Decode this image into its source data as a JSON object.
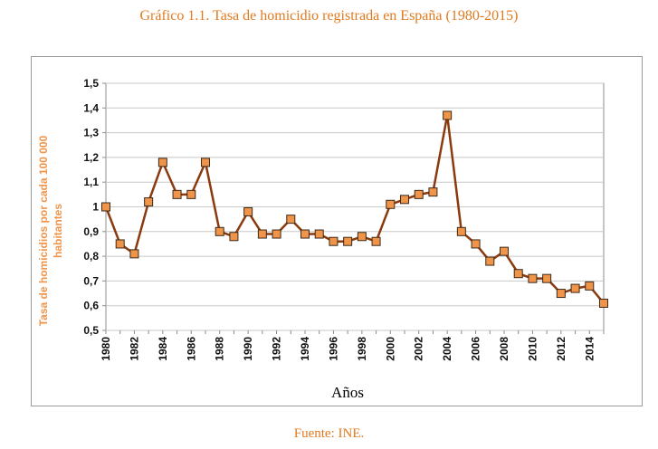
{
  "chart_data": {
    "type": "line",
    "title": "Gráfico 1.1. Tasa de homicidio registrada en España (1980-2015)",
    "xlabel": "Años",
    "ylabel_line1": "Tasa de homicidios por cada 100 000",
    "ylabel_line2": "habitantes",
    "ylim": [
      0.5,
      1.5
    ],
    "y_ticks": [
      "0,5",
      "0,6",
      "0,7",
      "0,8",
      "0,9",
      "1",
      "1,1",
      "1,2",
      "1,3",
      "1,4",
      "1,5"
    ],
    "x_tick_labels": [
      "1980",
      "1982",
      "1984",
      "1986",
      "1988",
      "1990",
      "1992",
      "1994",
      "1996",
      "1998",
      "2000",
      "2002",
      "2004",
      "2006",
      "2008",
      "2010",
      "2012",
      "2014"
    ],
    "grid": true,
    "colors": {
      "line": "#8B3A0F",
      "marker_fill": "#F0944A",
      "marker_stroke": "#3a2a1a",
      "title": "#E07A1F",
      "ylabel": "#F0944A",
      "grid": "#c8c8c8"
    },
    "x": [
      1980,
      1981,
      1982,
      1983,
      1984,
      1985,
      1986,
      1987,
      1988,
      1989,
      1990,
      1991,
      1992,
      1993,
      1994,
      1995,
      1996,
      1997,
      1998,
      1999,
      2000,
      2001,
      2002,
      2003,
      2004,
      2005,
      2006,
      2007,
      2008,
      2009,
      2010,
      2011,
      2012,
      2013,
      2014,
      2015
    ],
    "series": [
      {
        "name": "Tasa de homicidio",
        "values": [
          1.0,
          0.85,
          0.81,
          1.02,
          1.18,
          1.05,
          1.05,
          1.18,
          0.9,
          0.88,
          0.98,
          0.89,
          0.89,
          0.95,
          0.89,
          0.89,
          0.86,
          0.86,
          0.88,
          0.86,
          1.01,
          1.03,
          1.05,
          1.06,
          1.37,
          0.9,
          0.85,
          0.78,
          0.82,
          0.73,
          0.71,
          0.71,
          0.65,
          0.67,
          0.68,
          0.61
        ]
      }
    ]
  },
  "source": "Fuente: INE."
}
